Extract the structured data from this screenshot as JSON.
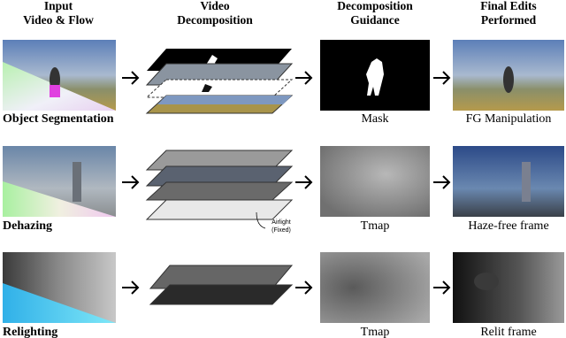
{
  "headers": [
    {
      "lines": [
        "Input",
        "Video & Flow"
      ]
    },
    {
      "lines": [
        "Video",
        "Decomposition"
      ]
    },
    {
      "lines": [
        "Decomposition",
        "Guidance"
      ]
    },
    {
      "lines": [
        "Final Edits",
        "Performed"
      ]
    }
  ],
  "rows": [
    {
      "task": "Object Segmentation",
      "guidance": "Mask",
      "edit": "FG Manipulation"
    },
    {
      "task": "Dehazing",
      "guidance": "Tmap",
      "edit": "Haze-free frame",
      "annotation": [
        "Airlight",
        "(Fixed)"
      ]
    },
    {
      "task": "Relighting",
      "guidance": "Tmap",
      "edit": "Relit frame"
    }
  ]
}
